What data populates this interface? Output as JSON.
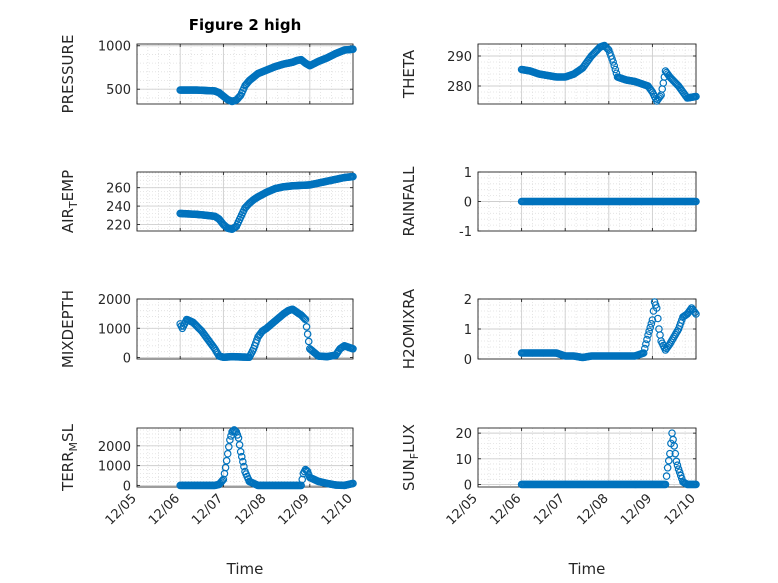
{
  "figure": {
    "title": "Figure 2 high"
  },
  "chart_data": [
    {
      "type": "scatter",
      "panel": "left-1",
      "ylabel": "PRESSURE",
      "xlabel": "",
      "xlim": [
        0,
        5
      ],
      "ylim": [
        330,
        1020
      ],
      "yticks": [
        500,
        1000
      ],
      "xtick_labels": [],
      "grid": true,
      "marker_color": "#0072BD",
      "x": [
        1.0,
        1.2,
        1.4,
        1.6,
        1.8,
        1.9,
        2.0,
        2.1,
        2.2,
        2.3,
        2.4,
        2.5,
        2.6,
        2.7,
        2.8,
        3.0,
        3.2,
        3.4,
        3.6,
        3.7,
        3.8,
        3.9,
        4.0,
        4.2,
        4.4,
        4.6,
        4.8,
        5.0
      ],
      "y": [
        490,
        490,
        490,
        485,
        480,
        460,
        420,
        380,
        360,
        375,
        430,
        540,
        600,
        640,
        680,
        720,
        760,
        790,
        810,
        830,
        840,
        800,
        770,
        820,
        860,
        910,
        950,
        960
      ]
    },
    {
      "type": "scatter",
      "panel": "right-1",
      "ylabel": "THETA",
      "xlabel": "",
      "xlim": [
        0,
        5
      ],
      "ylim": [
        274,
        294
      ],
      "yticks": [
        280,
        290
      ],
      "xtick_labels": [],
      "grid": true,
      "marker_color": "#0072BD",
      "x": [
        1.0,
        1.2,
        1.4,
        1.6,
        1.8,
        2.0,
        2.2,
        2.4,
        2.6,
        2.8,
        2.9,
        3.0,
        3.1,
        3.2,
        3.4,
        3.6,
        3.8,
        3.9,
        4.0,
        4.1,
        4.2,
        4.3,
        4.4,
        4.6,
        4.8,
        5.0
      ],
      "y": [
        285.5,
        285,
        284,
        283.5,
        283,
        283,
        284,
        286,
        290,
        293,
        293.5,
        292,
        288,
        283,
        282,
        281.5,
        280.5,
        280,
        278,
        275,
        277,
        285,
        283,
        280,
        276,
        276.5
      ]
    },
    {
      "type": "scatter",
      "panel": "left-2",
      "ylabel": "AIR_TEMP",
      "xlabel": "",
      "xlim": [
        0,
        5
      ],
      "ylim": [
        213,
        277
      ],
      "yticks": [
        220,
        240,
        260
      ],
      "xtick_labels": [],
      "grid": true,
      "marker_color": "#0072BD",
      "x": [
        1.0,
        1.2,
        1.4,
        1.6,
        1.8,
        1.9,
        2.0,
        2.1,
        2.2,
        2.3,
        2.4,
        2.5,
        2.6,
        2.7,
        2.8,
        3.0,
        3.2,
        3.4,
        3.6,
        3.8,
        4.0,
        4.2,
        4.4,
        4.6,
        4.8,
        5.0
      ],
      "y": [
        232,
        231.5,
        231,
        230,
        229,
        226,
        220,
        216,
        215,
        218,
        228,
        238,
        243,
        247,
        250,
        255,
        259,
        261,
        262,
        262.5,
        263,
        265,
        267,
        269,
        271,
        272
      ]
    },
    {
      "type": "scatter",
      "panel": "right-2",
      "ylabel": "RAINFALL",
      "xlabel": "",
      "xlim": [
        0,
        5
      ],
      "ylim": [
        -1,
        1
      ],
      "yticks": [
        -1,
        0,
        1
      ],
      "xtick_labels": [],
      "grid": true,
      "marker_color": "#0072BD",
      "x": [
        1.0,
        1.2,
        1.4,
        1.6,
        1.8,
        2.0,
        2.2,
        2.4,
        2.6,
        2.8,
        3.0,
        3.2,
        3.4,
        3.6,
        3.8,
        4.0,
        4.2,
        4.4,
        4.6,
        4.8,
        5.0
      ],
      "y": [
        0,
        0,
        0,
        0,
        0,
        0,
        0,
        0,
        0,
        0,
        0,
        0,
        0,
        0,
        0,
        0,
        0,
        0,
        0,
        0,
        0
      ]
    },
    {
      "type": "scatter",
      "panel": "left-3",
      "ylabel": "MIXDEPTH",
      "xlabel": "",
      "xlim": [
        0,
        5
      ],
      "ylim": [
        -50,
        2000
      ],
      "yticks": [
        0,
        1000,
        2000
      ],
      "xtick_labels": [],
      "grid": true,
      "marker_color": "#0072BD",
      "x": [
        1.0,
        1.05,
        1.15,
        1.3,
        1.4,
        1.5,
        1.6,
        1.7,
        1.8,
        1.9,
        2.0,
        2.2,
        2.4,
        2.6,
        2.7,
        2.8,
        2.9,
        3.0,
        3.2,
        3.4,
        3.5,
        3.6,
        3.7,
        3.8,
        3.9,
        4.0,
        4.2,
        4.4,
        4.6,
        4.7,
        4.8,
        4.9,
        5.0
      ],
      "y": [
        1150,
        1000,
        1300,
        1200,
        1050,
        900,
        700,
        500,
        300,
        50,
        10,
        30,
        20,
        10,
        300,
        700,
        900,
        1000,
        1250,
        1500,
        1600,
        1650,
        1550,
        1450,
        1300,
        300,
        50,
        30,
        80,
        300,
        400,
        350,
        300
      ]
    },
    {
      "type": "scatter",
      "panel": "right-3",
      "ylabel": "H2OMIXRA",
      "xlabel": "",
      "xlim": [
        0,
        5
      ],
      "ylim": [
        0,
        2
      ],
      "yticks": [
        0,
        1,
        2
      ],
      "xtick_labels": [],
      "grid": true,
      "marker_color": "#0072BD",
      "x": [
        1.0,
        1.2,
        1.4,
        1.6,
        1.8,
        2.0,
        2.2,
        2.4,
        2.6,
        2.8,
        3.0,
        3.2,
        3.4,
        3.6,
        3.8,
        3.9,
        4.0,
        4.05,
        4.1,
        4.15,
        4.2,
        4.3,
        4.4,
        4.6,
        4.7,
        4.8,
        4.9,
        5.0
      ],
      "y": [
        0.2,
        0.2,
        0.2,
        0.2,
        0.2,
        0.1,
        0.1,
        0.05,
        0.1,
        0.1,
        0.1,
        0.1,
        0.1,
        0.1,
        0.2,
        0.8,
        1.3,
        1.9,
        1.7,
        1.0,
        0.6,
        0.3,
        0.5,
        1.0,
        1.4,
        1.5,
        1.7,
        1.5
      ]
    },
    {
      "type": "scatter",
      "panel": "left-4",
      "ylabel": "TERR_MSL",
      "xlabel": "Time",
      "xlim": [
        0,
        5
      ],
      "ylim": [
        -80,
        2900
      ],
      "yticks": [
        0,
        1000,
        2000
      ],
      "xtick_labels": [
        "12/05",
        "12/06",
        "12/07",
        "12/08",
        "12/09",
        "12/10"
      ],
      "grid": true,
      "marker_color": "#0072BD",
      "x": [
        1.0,
        1.2,
        1.4,
        1.6,
        1.8,
        1.9,
        2.0,
        2.05,
        2.1,
        2.15,
        2.2,
        2.25,
        2.3,
        2.35,
        2.4,
        2.5,
        2.6,
        2.8,
        3.0,
        3.2,
        3.4,
        3.6,
        3.8,
        3.85,
        3.9,
        3.95,
        4.0,
        4.2,
        4.4,
        4.6,
        4.8,
        5.0
      ],
      "y": [
        0,
        0,
        0,
        0,
        0,
        50,
        300,
        900,
        1600,
        2300,
        2700,
        2800,
        2700,
        2400,
        1700,
        700,
        200,
        0,
        0,
        0,
        0,
        0,
        0,
        600,
        800,
        700,
        400,
        200,
        100,
        20,
        0,
        100
      ]
    },
    {
      "type": "scatter",
      "panel": "right-4",
      "ylabel": "SUN_FLUX",
      "xlabel": "Time",
      "xlim": [
        0,
        5
      ],
      "ylim": [
        -1,
        22
      ],
      "yticks": [
        0,
        10,
        20
      ],
      "xtick_labels": [
        "12/05",
        "12/06",
        "12/07",
        "12/08",
        "12/09",
        "12/10"
      ],
      "grid": true,
      "marker_color": "#0072BD",
      "x": [
        1.0,
        1.2,
        1.4,
        1.6,
        1.8,
        2.0,
        2.2,
        2.4,
        2.6,
        2.8,
        3.0,
        3.2,
        3.4,
        3.6,
        3.8,
        4.0,
        4.2,
        4.3,
        4.35,
        4.4,
        4.45,
        4.5,
        4.55,
        4.6,
        4.7,
        4.8,
        5.0
      ],
      "y": [
        0,
        0,
        0,
        0,
        0,
        0,
        0,
        0,
        0,
        0,
        0,
        0,
        0,
        0,
        0,
        0,
        0,
        0,
        6.5,
        12,
        20,
        15,
        9,
        6,
        1,
        0,
        0
      ]
    }
  ],
  "colors": {
    "marker": "#0072BD",
    "axis": "#262626",
    "grid": "#DFDFDF"
  }
}
